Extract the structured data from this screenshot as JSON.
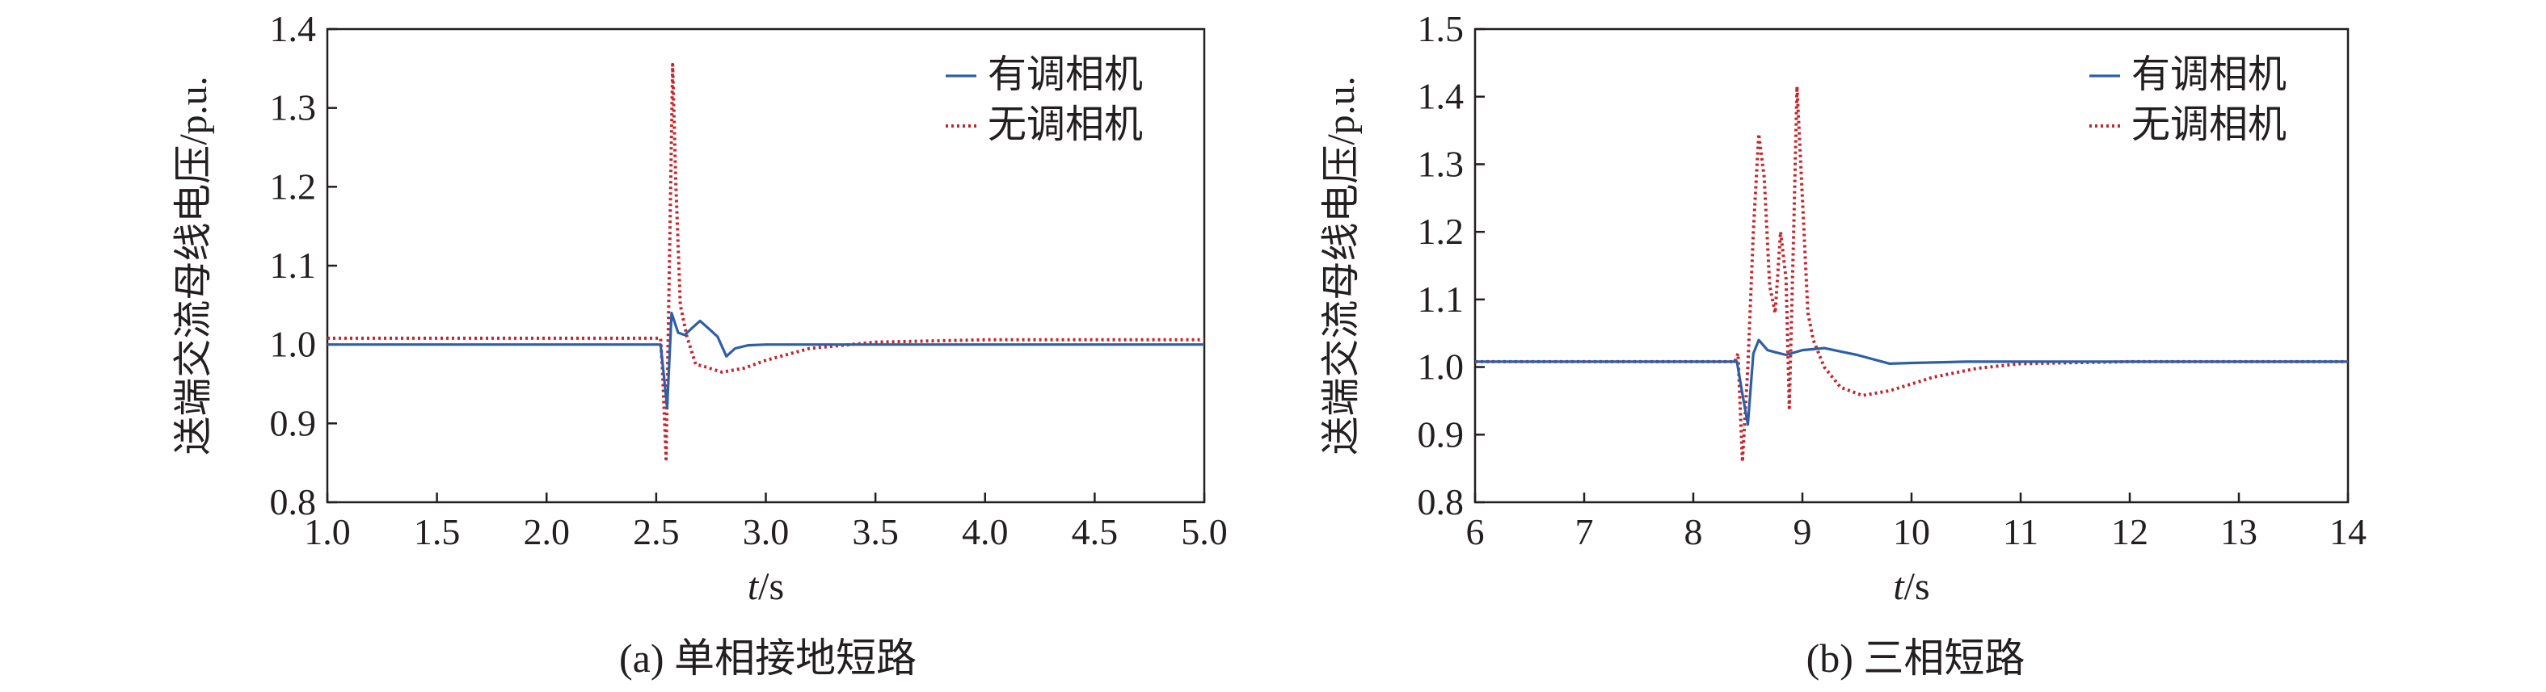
{
  "chart_data": [
    {
      "id": "a",
      "type": "line",
      "caption": "(a) 单相接地短路",
      "xlabel_italic": "t",
      "xlabel_unit": "/s",
      "ylabel": "送端交流母线电压/p.u.",
      "xlim": [
        1.0,
        5.0
      ],
      "ylim": [
        0.8,
        1.4
      ],
      "xticks": [
        "1.0",
        "1.5",
        "2.0",
        "2.5",
        "3.0",
        "3.5",
        "4.0",
        "4.5",
        "5.0"
      ],
      "yticks": [
        "0.8",
        "0.9",
        "1.0",
        "1.1",
        "1.2",
        "1.3",
        "1.4"
      ],
      "grid": false,
      "legend_position": "top-right",
      "series": [
        {
          "name": "有调相机",
          "color": "#2e5fa6",
          "style": "solid",
          "points": [
            [
              1.0,
              1.0
            ],
            [
              2.52,
              1.0
            ],
            [
              2.535,
              0.96
            ],
            [
              2.55,
              0.92
            ],
            [
              2.57,
              1.04
            ],
            [
              2.6,
              1.015
            ],
            [
              2.63,
              1.012
            ],
            [
              2.66,
              1.02
            ],
            [
              2.7,
              1.03
            ],
            [
              2.74,
              1.02
            ],
            [
              2.78,
              1.01
            ],
            [
              2.82,
              0.985
            ],
            [
              2.86,
              0.995
            ],
            [
              2.92,
              0.999
            ],
            [
              3.0,
              1.0
            ],
            [
              3.5,
              1.0
            ],
            [
              4.0,
              1.0
            ],
            [
              5.0,
              1.0
            ]
          ]
        },
        {
          "name": "无调相机",
          "color": "#c0282f",
          "style": "dotted",
          "points": [
            [
              1.0,
              1.008
            ],
            [
              2.52,
              1.008
            ],
            [
              2.53,
              0.96
            ],
            [
              2.545,
              0.855
            ],
            [
              2.56,
              1.1
            ],
            [
              2.575,
              1.355
            ],
            [
              2.59,
              1.2
            ],
            [
              2.61,
              1.05
            ],
            [
              2.64,
              1.01
            ],
            [
              2.68,
              0.975
            ],
            [
              2.72,
              0.972
            ],
            [
              2.8,
              0.965
            ],
            [
              2.9,
              0.97
            ],
            [
              3.0,
              0.98
            ],
            [
              3.2,
              0.995
            ],
            [
              3.5,
              1.003
            ],
            [
              4.0,
              1.006
            ],
            [
              5.0,
              1.006
            ]
          ]
        }
      ]
    },
    {
      "id": "b",
      "type": "line",
      "caption": "(b) 三相短路",
      "xlabel_italic": "t",
      "xlabel_unit": "/s",
      "ylabel": "送端交流母线电压/p.u.",
      "xlim": [
        6,
        14
      ],
      "ylim": [
        0.8,
        1.5
      ],
      "xticks": [
        "6",
        "7",
        "8",
        "9",
        "10",
        "11",
        "12",
        "13",
        "14"
      ],
      "yticks": [
        "0.8",
        "0.9",
        "1.0",
        "1.1",
        "1.2",
        "1.3",
        "1.4",
        "1.5"
      ],
      "grid": false,
      "legend_position": "top-right",
      "series": [
        {
          "name": "有调相机",
          "color": "#2e5fa6",
          "style": "solid",
          "points": [
            [
              6,
              1.008
            ],
            [
              8.4,
              1.008
            ],
            [
              8.45,
              0.96
            ],
            [
              8.5,
              0.915
            ],
            [
              8.55,
              1.02
            ],
            [
              8.6,
              1.04
            ],
            [
              8.68,
              1.025
            ],
            [
              8.75,
              1.022
            ],
            [
              8.85,
              1.018
            ],
            [
              9.0,
              1.025
            ],
            [
              9.2,
              1.028
            ],
            [
              9.5,
              1.018
            ],
            [
              9.8,
              1.005
            ],
            [
              10.0,
              1.006
            ],
            [
              10.5,
              1.008
            ],
            [
              11,
              1.008
            ],
            [
              12,
              1.008
            ],
            [
              14,
              1.008
            ]
          ]
        },
        {
          "name": "无调相机",
          "color": "#c0282f",
          "style": "dotted",
          "points": [
            [
              6,
              1.008
            ],
            [
              8.38,
              1.008
            ],
            [
              8.41,
              1.02
            ],
            [
              8.45,
              0.86
            ],
            [
              8.5,
              1.0
            ],
            [
              8.55,
              1.2
            ],
            [
              8.6,
              1.345
            ],
            [
              8.65,
              1.28
            ],
            [
              8.7,
              1.12
            ],
            [
              8.75,
              1.08
            ],
            [
              8.8,
              1.2
            ],
            [
              8.85,
              1.13
            ],
            [
              8.88,
              0.94
            ],
            [
              8.92,
              1.2
            ],
            [
              8.95,
              1.415
            ],
            [
              9.0,
              1.25
            ],
            [
              9.05,
              1.08
            ],
            [
              9.1,
              1.04
            ],
            [
              9.2,
              1.0
            ],
            [
              9.35,
              0.97
            ],
            [
              9.55,
              0.958
            ],
            [
              9.8,
              0.965
            ],
            [
              10.2,
              0.985
            ],
            [
              10.6,
              0.998
            ],
            [
              11,
              1.005
            ],
            [
              12,
              1.008
            ],
            [
              14,
              1.008
            ]
          ]
        }
      ]
    }
  ]
}
